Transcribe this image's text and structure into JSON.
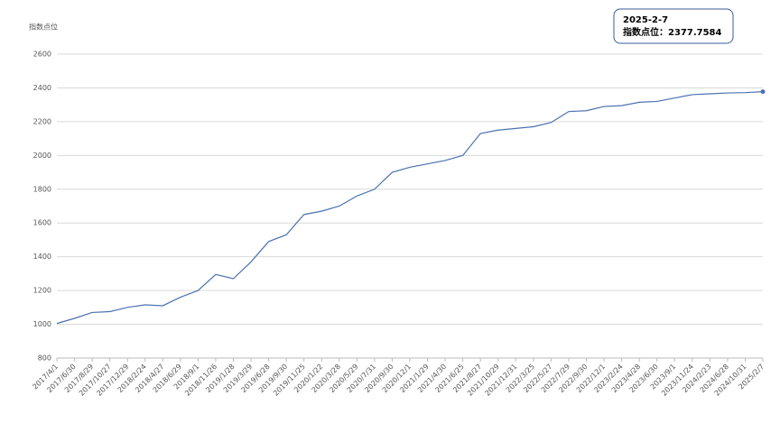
{
  "chart_data": {
    "type": "line",
    "y_label": "指数点位",
    "categories": [
      "2017/4/1",
      "2017/6/30",
      "2017/8/29",
      "2017/10/27",
      "2017/12/29",
      "2018/2/24",
      "2018/4/27",
      "2018/6/29",
      "2018/9/1",
      "2018/11/26",
      "2019/1/28",
      "2019/3/29",
      "2019/6/28",
      "2019/9/30",
      "2019/11/25",
      "2020/1/22",
      "2020/3/28",
      "2020/5/29",
      "2020/7/31",
      "2020/9/30",
      "2020/12/1",
      "2021/1/29",
      "2021/4/30",
      "2021/6/25",
      "2021/8/27",
      "2021/10/29",
      "2021/12/31",
      "2022/3/25",
      "2022/5/27",
      "2022/7/29",
      "2022/9/30",
      "2022/12/1",
      "2023/2/24",
      "2023/4/28",
      "2023/6/30",
      "2023/9/1",
      "2023/11/24",
      "2024/2/23",
      "2024/6/28",
      "2024/10/31",
      "2025/2/7"
    ],
    "series": [
      {
        "name": "指数点位",
        "color": "#4a72b0",
        "values": [
          1005,
          1035,
          1070,
          1075,
          1100,
          1115,
          1110,
          1160,
          1200,
          1295,
          1270,
          1370,
          1490,
          1530,
          1650,
          1670,
          1700,
          1760,
          1800,
          1900,
          1930,
          1950,
          1970,
          2000,
          2130,
          2150,
          2160,
          2170,
          2195,
          2260,
          2265,
          2290,
          2295,
          2315,
          2320,
          2340,
          2360,
          2365,
          2370,
          2372,
          2377.7584
        ]
      }
    ],
    "ylim": [
      800,
      2600
    ],
    "yticks": [
      800,
      1000,
      1200,
      1400,
      1600,
      1800,
      2000,
      2200,
      2400,
      2600
    ],
    "grid": true,
    "tooltip": {
      "title": "2025-2-7",
      "text": "指数点位：2377.7584"
    }
  }
}
